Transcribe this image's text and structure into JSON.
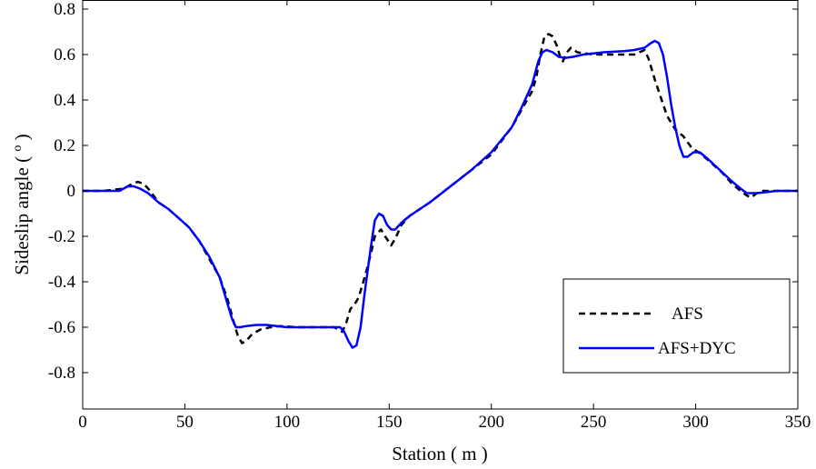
{
  "chart_data": {
    "type": "line",
    "title": "",
    "xlabel": "Station ( m )",
    "ylabel_parts": [
      "Sideslip angle ( ",
      "o",
      " )"
    ],
    "xlim": [
      0,
      350
    ],
    "ylim": [
      -0.96,
      0.84
    ],
    "x_ticks": [
      0,
      50,
      100,
      150,
      200,
      250,
      300,
      350
    ],
    "y_ticks": [
      -0.8,
      -0.6,
      -0.4,
      -0.2,
      0,
      0.2,
      0.4,
      0.6,
      0.8
    ],
    "x_tick_labels": [
      "0",
      "50",
      "100",
      "150",
      "200",
      "250",
      "300",
      "350"
    ],
    "y_tick_labels": [
      "-0.8",
      "-0.6",
      "-0.4",
      "-0.2",
      "0",
      "0.2",
      "0.4",
      "0.6",
      "0.8"
    ],
    "grid": false,
    "legend_position": "lower-right",
    "series": [
      {
        "name": "AFS",
        "color": "#000000",
        "style": "dashed",
        "points": [
          [
            0,
            0
          ],
          [
            10,
            0
          ],
          [
            20,
            0.01
          ],
          [
            24,
            0.03
          ],
          [
            27,
            0.04
          ],
          [
            30,
            0.03
          ],
          [
            33,
            0.0
          ],
          [
            37,
            -0.05
          ],
          [
            42,
            -0.08
          ],
          [
            47,
            -0.12
          ],
          [
            52,
            -0.16
          ],
          [
            57,
            -0.22
          ],
          [
            62,
            -0.3
          ],
          [
            67,
            -0.38
          ],
          [
            71,
            -0.48
          ],
          [
            74,
            -0.58
          ],
          [
            76,
            -0.64
          ],
          [
            78,
            -0.67
          ],
          [
            80,
            -0.66
          ],
          [
            83,
            -0.63
          ],
          [
            87,
            -0.61
          ],
          [
            92,
            -0.6
          ],
          [
            97,
            -0.595
          ],
          [
            105,
            -0.6
          ],
          [
            115,
            -0.6
          ],
          [
            123,
            -0.6
          ],
          [
            127,
            -0.62
          ],
          [
            129,
            -0.58
          ],
          [
            131,
            -0.52
          ],
          [
            133,
            -0.5
          ],
          [
            135,
            -0.47
          ],
          [
            138,
            -0.38
          ],
          [
            141,
            -0.28
          ],
          [
            143,
            -0.2
          ],
          [
            146,
            -0.17
          ],
          [
            148,
            -0.2
          ],
          [
            151,
            -0.24
          ],
          [
            153,
            -0.21
          ],
          [
            156,
            -0.15
          ],
          [
            160,
            -0.11
          ],
          [
            170,
            -0.05
          ],
          [
            180,
            0.02
          ],
          [
            190,
            0.09
          ],
          [
            200,
            0.16
          ],
          [
            210,
            0.28
          ],
          [
            215,
            0.36
          ],
          [
            220,
            0.44
          ],
          [
            222,
            0.5
          ],
          [
            224,
            0.6
          ],
          [
            226,
            0.68
          ],
          [
            228,
            0.69
          ],
          [
            230,
            0.68
          ],
          [
            232,
            0.64
          ],
          [
            234,
            0.58
          ],
          [
            235,
            0.57
          ],
          [
            237,
            0.61
          ],
          [
            239,
            0.63
          ],
          [
            242,
            0.61
          ],
          [
            250,
            0.6
          ],
          [
            260,
            0.6
          ],
          [
            270,
            0.6
          ],
          [
            275,
            0.62
          ],
          [
            277,
            0.58
          ],
          [
            280,
            0.49
          ],
          [
            283,
            0.41
          ],
          [
            286,
            0.33
          ],
          [
            290,
            0.27
          ],
          [
            294,
            0.24
          ],
          [
            298,
            0.19
          ],
          [
            303,
            0.16
          ],
          [
            308,
            0.12
          ],
          [
            313,
            0.08
          ],
          [
            318,
            0.03
          ],
          [
            322,
            0.0
          ],
          [
            325,
            -0.02
          ],
          [
            327,
            -0.03
          ],
          [
            330,
            -0.01
          ],
          [
            333,
            0.0
          ],
          [
            350,
            0.0
          ]
        ]
      },
      {
        "name": "AFS+DYC",
        "color": "#0000ff",
        "style": "solid",
        "points": [
          [
            0,
            0
          ],
          [
            10,
            0
          ],
          [
            18,
            0.0
          ],
          [
            22,
            0.02
          ],
          [
            25,
            0.02
          ],
          [
            28,
            0.01
          ],
          [
            32,
            -0.01
          ],
          [
            37,
            -0.05
          ],
          [
            42,
            -0.08
          ],
          [
            47,
            -0.12
          ],
          [
            52,
            -0.16
          ],
          [
            57,
            -0.22
          ],
          [
            62,
            -0.29
          ],
          [
            67,
            -0.38
          ],
          [
            70,
            -0.47
          ],
          [
            73,
            -0.56
          ],
          [
            75,
            -0.6
          ],
          [
            77,
            -0.6
          ],
          [
            80,
            -0.595
          ],
          [
            85,
            -0.59
          ],
          [
            90,
            -0.59
          ],
          [
            95,
            -0.595
          ],
          [
            100,
            -0.6
          ],
          [
            110,
            -0.6
          ],
          [
            120,
            -0.6
          ],
          [
            126,
            -0.6
          ],
          [
            128,
            -0.62
          ],
          [
            130,
            -0.66
          ],
          [
            132,
            -0.69
          ],
          [
            134,
            -0.68
          ],
          [
            136,
            -0.6
          ],
          [
            138,
            -0.45
          ],
          [
            141,
            -0.25
          ],
          [
            143,
            -0.13
          ],
          [
            145,
            -0.1
          ],
          [
            147,
            -0.11
          ],
          [
            149,
            -0.15
          ],
          [
            151,
            -0.17
          ],
          [
            153,
            -0.17
          ],
          [
            156,
            -0.14
          ],
          [
            160,
            -0.11
          ],
          [
            170,
            -0.05
          ],
          [
            180,
            0.02
          ],
          [
            190,
            0.09
          ],
          [
            200,
            0.17
          ],
          [
            210,
            0.28
          ],
          [
            215,
            0.37
          ],
          [
            220,
            0.47
          ],
          [
            223,
            0.57
          ],
          [
            225,
            0.61
          ],
          [
            227,
            0.62
          ],
          [
            230,
            0.61
          ],
          [
            233,
            0.59
          ],
          [
            236,
            0.585
          ],
          [
            240,
            0.59
          ],
          [
            245,
            0.6
          ],
          [
            255,
            0.61
          ],
          [
            265,
            0.615
          ],
          [
            270,
            0.62
          ],
          [
            275,
            0.63
          ],
          [
            278,
            0.65
          ],
          [
            280,
            0.66
          ],
          [
            282,
            0.65
          ],
          [
            284,
            0.6
          ],
          [
            286,
            0.5
          ],
          [
            288,
            0.38
          ],
          [
            290,
            0.28
          ],
          [
            292,
            0.2
          ],
          [
            294,
            0.15
          ],
          [
            296,
            0.15
          ],
          [
            299,
            0.17
          ],
          [
            302,
            0.17
          ],
          [
            306,
            0.14
          ],
          [
            312,
            0.09
          ],
          [
            318,
            0.04
          ],
          [
            322,
            0.01
          ],
          [
            325,
            -0.01
          ],
          [
            330,
            -0.01
          ],
          [
            340,
            0.0
          ],
          [
            350,
            0.0
          ]
        ]
      }
    ]
  }
}
